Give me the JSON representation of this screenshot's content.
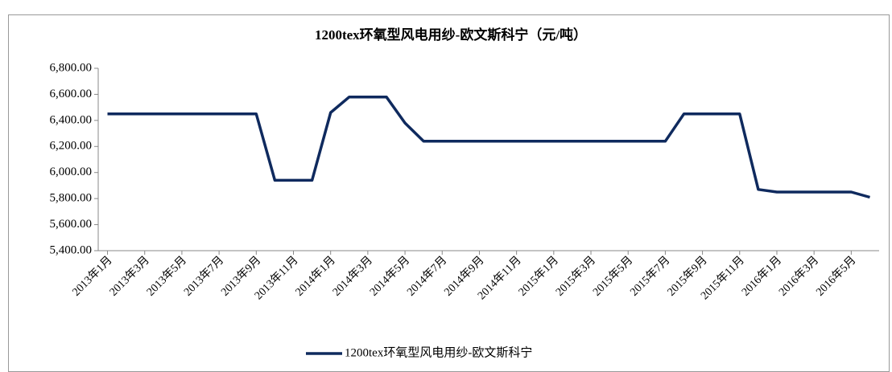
{
  "chart_data": {
    "type": "line",
    "title": "1200tex环氧型风电用纱-欧文斯科宁（元/吨）",
    "categories": [
      "2013年1月",
      null,
      "2013年3月",
      null,
      "2013年5月",
      null,
      "2013年7月",
      null,
      "2013年9月",
      null,
      "2013年11月",
      null,
      "2014年1月",
      null,
      "2014年3月",
      null,
      "2014年5月",
      null,
      "2014年7月",
      null,
      "2014年9月",
      null,
      "2014年11月",
      null,
      "2015年1月",
      null,
      "2015年3月",
      null,
      "2015年5月",
      null,
      "2015年7月",
      null,
      "2015年9月",
      null,
      "2015年11月",
      null,
      "2016年1月",
      null,
      "2016年3月",
      null,
      "2016年5月",
      null
    ],
    "series": [
      {
        "name": "1200tex环氧型风电用纱-欧文斯科宁",
        "color": "#0f2a5e",
        "values": [
          6450,
          6450,
          6450,
          6450,
          6450,
          6450,
          6450,
          6450,
          6450,
          5940,
          5940,
          5940,
          6460,
          6580,
          6580,
          6580,
          6380,
          6240,
          6240,
          6240,
          6240,
          6240,
          6240,
          6240,
          6240,
          6240,
          6240,
          6240,
          6240,
          6240,
          6240,
          6450,
          6450,
          6450,
          6450,
          5870,
          5850,
          5850,
          5850,
          5850,
          5850,
          5810
        ]
      }
    ],
    "ylim": [
      5400,
      6800
    ],
    "yticks": [
      {
        "value": 5400,
        "label": "5,400.00"
      },
      {
        "value": 5600,
        "label": "5,600.00"
      },
      {
        "value": 5800,
        "label": "5,800.00"
      },
      {
        "value": 6000,
        "label": "6,000.00"
      },
      {
        "value": 6200,
        "label": "6,200.00"
      },
      {
        "value": 6400,
        "label": "6,400.00"
      },
      {
        "value": 6600,
        "label": "6,600.00"
      },
      {
        "value": 6800,
        "label": "6,800.00"
      }
    ],
    "grid": false,
    "legend": "bottom"
  }
}
